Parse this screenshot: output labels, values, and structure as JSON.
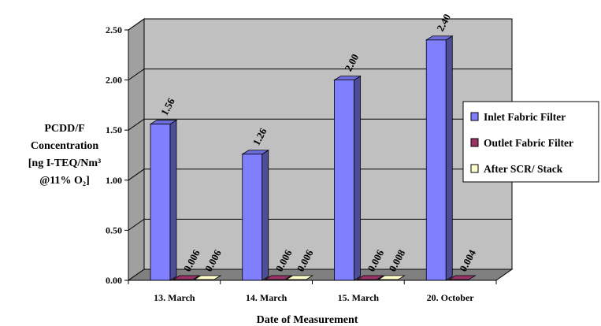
{
  "chart_data": {
    "type": "bar",
    "style": "3d-clustered-column",
    "categories": [
      "13. March",
      "14. March",
      "15. March",
      "20. October"
    ],
    "series": [
      {
        "name": "Inlet Fabric Filter",
        "values": [
          1.56,
          1.26,
          2.0,
          2.4
        ],
        "labels": [
          "1.56",
          "1.26",
          "2.00",
          "2.40"
        ],
        "color": "#8080ff"
      },
      {
        "name": "Outlet Fabric Filter",
        "values": [
          0.006,
          0.006,
          0.006,
          0.004
        ],
        "labels": [
          "0.006",
          "0.006",
          "0.006",
          "0.004"
        ],
        "color": "#993366"
      },
      {
        "name": "After SCR/ Stack",
        "values": [
          0.006,
          0.006,
          0.008,
          null
        ],
        "labels": [
          "0.006",
          "0.006",
          "0.008",
          null
        ],
        "color": "#ffffcc"
      }
    ],
    "ylabel_lines": [
      "PCDD/F",
      "Concentration",
      "[ng I-TEQ/Nm³",
      "@11% O₂]"
    ],
    "xlabel": "Date of Measurement",
    "ylim": [
      0,
      2.5
    ],
    "yticks": [
      "0.00",
      "0.50",
      "1.00",
      "1.50",
      "2.00",
      "2.50"
    ],
    "grid": true,
    "legend_position": "right",
    "wall_color": "#c0c0c0",
    "floor_color": "#808080"
  }
}
